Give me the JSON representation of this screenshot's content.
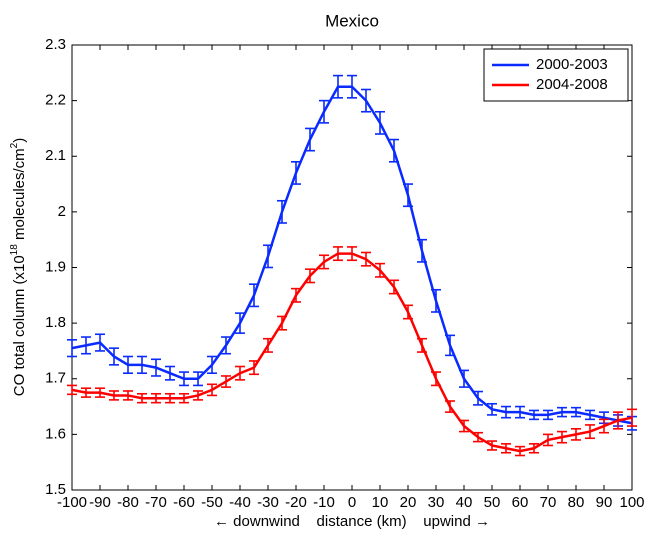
{
  "chart_data": {
    "type": "line",
    "title": "Mexico",
    "x_label": "← downwind    distance (km)    upwind →",
    "y_label": [
      "CO total column (x10",
      "18",
      " molecules/cm",
      "2",
      ")"
    ],
    "x": [
      -100,
      -95,
      -90,
      -85,
      -80,
      -75,
      -70,
      -65,
      -60,
      -55,
      -50,
      -45,
      -40,
      -35,
      -30,
      -25,
      -20,
      -15,
      -10,
      -5,
      0,
      5,
      10,
      15,
      20,
      25,
      30,
      35,
      40,
      45,
      50,
      55,
      60,
      65,
      70,
      75,
      80,
      85,
      90,
      95,
      100
    ],
    "series": [
      {
        "name": "2000-2003",
        "color": "#0a2bff",
        "values": [
          1.755,
          1.76,
          1.765,
          1.74,
          1.725,
          1.725,
          1.72,
          1.71,
          1.7,
          1.7,
          1.725,
          1.76,
          1.8,
          1.85,
          1.92,
          2.0,
          2.07,
          2.13,
          2.18,
          2.225,
          2.225,
          2.2,
          2.16,
          2.11,
          2.03,
          1.93,
          1.84,
          1.76,
          1.7,
          1.665,
          1.645,
          1.64,
          1.64,
          1.635,
          1.635,
          1.64,
          1.64,
          1.635,
          1.63,
          1.625,
          1.62
        ],
        "errors": [
          0.015,
          0.015,
          0.015,
          0.015,
          0.015,
          0.015,
          0.015,
          0.012,
          0.012,
          0.012,
          0.015,
          0.015,
          0.018,
          0.02,
          0.02,
          0.02,
          0.02,
          0.02,
          0.02,
          0.02,
          0.02,
          0.02,
          0.02,
          0.02,
          0.02,
          0.02,
          0.02,
          0.018,
          0.015,
          0.012,
          0.01,
          0.01,
          0.01,
          0.008,
          0.008,
          0.008,
          0.008,
          0.008,
          0.01,
          0.01,
          0.012
        ]
      },
      {
        "name": "2004-2008",
        "color": "#ff0000",
        "values": [
          1.68,
          1.675,
          1.675,
          1.67,
          1.67,
          1.665,
          1.665,
          1.665,
          1.665,
          1.67,
          1.68,
          1.695,
          1.71,
          1.72,
          1.76,
          1.8,
          1.85,
          1.885,
          1.91,
          1.925,
          1.925,
          1.915,
          1.895,
          1.865,
          1.82,
          1.76,
          1.7,
          1.65,
          1.615,
          1.595,
          1.58,
          1.575,
          1.57,
          1.575,
          1.59,
          1.595,
          1.6,
          1.605,
          1.615,
          1.625,
          1.63
        ],
        "errors": [
          0.008,
          0.008,
          0.008,
          0.008,
          0.008,
          0.008,
          0.008,
          0.008,
          0.008,
          0.008,
          0.01,
          0.01,
          0.012,
          0.012,
          0.012,
          0.012,
          0.012,
          0.012,
          0.012,
          0.012,
          0.012,
          0.012,
          0.012,
          0.012,
          0.012,
          0.012,
          0.012,
          0.01,
          0.01,
          0.008,
          0.008,
          0.008,
          0.008,
          0.008,
          0.01,
          0.01,
          0.01,
          0.012,
          0.012,
          0.015,
          0.015
        ]
      }
    ],
    "xlim": [
      -100,
      100
    ],
    "xticks": [
      -100,
      -90,
      -80,
      -70,
      -60,
      -50,
      -40,
      -30,
      -20,
      -10,
      0,
      10,
      20,
      30,
      40,
      50,
      60,
      70,
      80,
      90,
      100
    ],
    "ylim": [
      1.5,
      2.3
    ],
    "yticks": [
      1.5,
      1.6,
      1.7,
      1.8,
      1.9,
      2,
      2.1,
      2.2,
      2.3
    ],
    "grid": false,
    "legend_position": "upper-right"
  }
}
